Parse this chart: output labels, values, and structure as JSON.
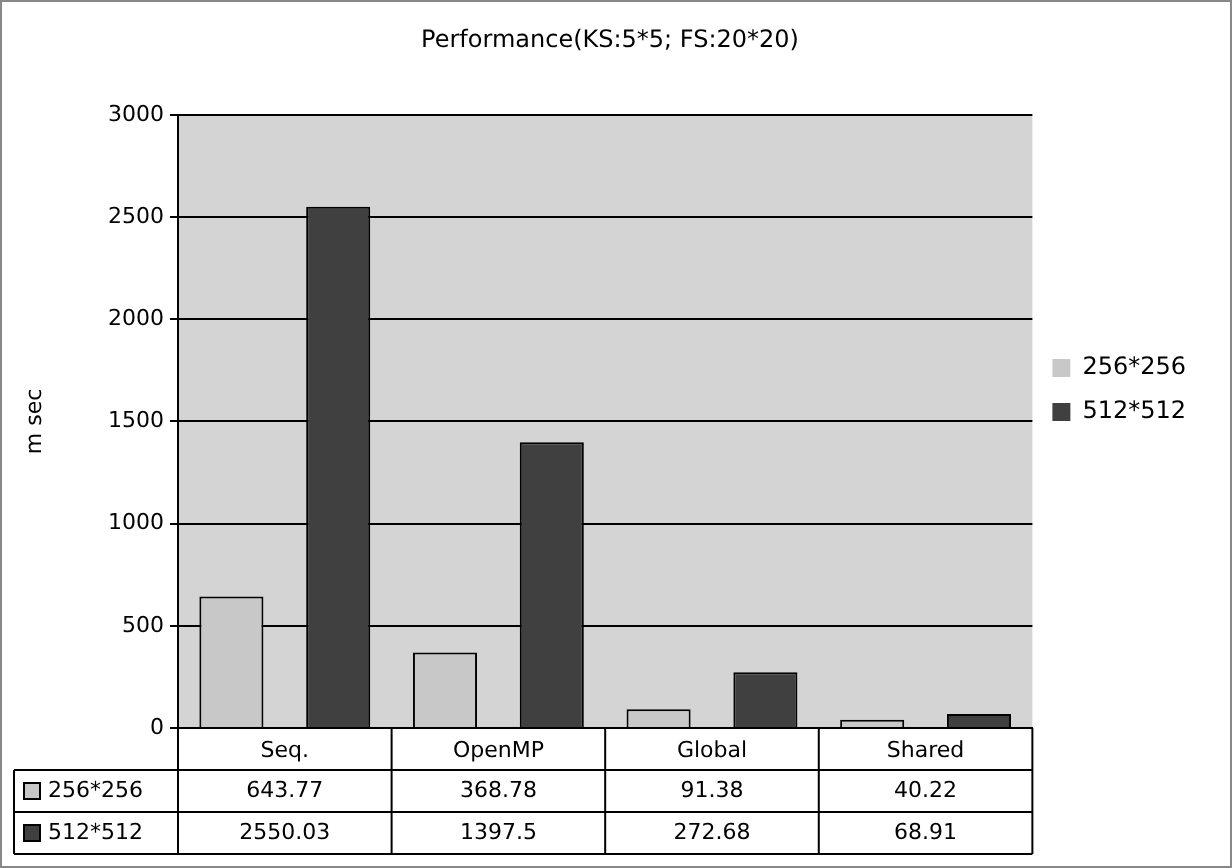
{
  "chart_data": {
    "type": "bar",
    "title": "Performance(KS:5*5; FS:20*20)",
    "ylabel": "m sec",
    "categories": [
      "Seq.",
      "OpenMP",
      "Global",
      "Shared"
    ],
    "series": [
      {
        "name": "256*256",
        "color": "#c8c8c8",
        "values": [
          643.77,
          368.78,
          91.38,
          40.22
        ]
      },
      {
        "name": "512*512",
        "color": "#404040",
        "values": [
          2550.03,
          1397.5,
          272.68,
          68.91
        ]
      }
    ],
    "ylim": [
      0,
      3000
    ],
    "yticks": [
      0,
      500,
      1000,
      1500,
      2000,
      2500,
      3000
    ],
    "grid": "y",
    "legend": "right",
    "data_labels": true
  }
}
